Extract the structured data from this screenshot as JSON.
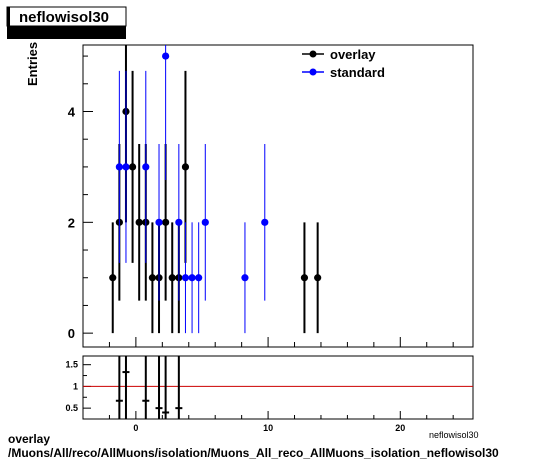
{
  "title": "neflowisol30",
  "ylabel": "Entries",
  "xlabel_partial": "neflowisol30",
  "footer": {
    "line1": "overlay",
    "line2": "/Muons/All/reco/AllMuons/isolation/Muons_All_reco_AllMuons_isolation_neflowisol30"
  },
  "colors": {
    "overlay": "#000000",
    "standard": "#0000ff",
    "ratio_line": "#cc0000"
  },
  "chart_data": [
    {
      "type": "scatter",
      "role": "main",
      "title": "neflowisol30",
      "ylabel": "Entries",
      "xlim": [
        -4,
        25.5
      ],
      "ylim": [
        -0.25,
        5.2
      ],
      "y_ticks": [
        0,
        2,
        4
      ],
      "legend": "top-right",
      "series": [
        {
          "name": "overlay",
          "color": "#000000",
          "points": [
            {
              "x": -1.75,
              "y": 1
            },
            {
              "x": -1.25,
              "y": 2
            },
            {
              "x": -0.75,
              "y": 4
            },
            {
              "x": -0.25,
              "y": 3
            },
            {
              "x": 0.25,
              "y": 2
            },
            {
              "x": 0.75,
              "y": 2
            },
            {
              "x": 1.25,
              "y": 1
            },
            {
              "x": 1.75,
              "y": 1
            },
            {
              "x": 2.25,
              "y": 2
            },
            {
              "x": 2.75,
              "y": 1
            },
            {
              "x": 3.25,
              "y": 1
            },
            {
              "x": 3.75,
              "y": 3
            },
            {
              "x": 12.75,
              "y": 1
            },
            {
              "x": 13.75,
              "y": 1
            }
          ]
        },
        {
          "name": "standard",
          "color": "#0000ff",
          "points": [
            {
              "x": -1.25,
              "y": 3
            },
            {
              "x": -0.75,
              "y": 3
            },
            {
              "x": 0.75,
              "y": 3
            },
            {
              "x": 1.75,
              "y": 2
            },
            {
              "x": 2.25,
              "y": 5
            },
            {
              "x": 3.25,
              "y": 2
            },
            {
              "x": 3.75,
              "y": 1
            },
            {
              "x": 4.25,
              "y": 1
            },
            {
              "x": 4.75,
              "y": 1
            },
            {
              "x": 5.25,
              "y": 2
            },
            {
              "x": 8.25,
              "y": 1
            },
            {
              "x": 9.75,
              "y": 2
            }
          ]
        }
      ]
    },
    {
      "type": "scatter",
      "role": "ratio",
      "xlim": [
        -4,
        25.5
      ],
      "ylim": [
        0.25,
        1.7
      ],
      "x_ticks": [
        0,
        10,
        20
      ],
      "y_ticks": [
        0.5,
        1,
        1.5
      ],
      "reference_line": 1,
      "points": [
        {
          "x": -1.25,
          "y": 0.67
        },
        {
          "x": -0.75,
          "y": 1.33
        },
        {
          "x": 0.75,
          "y": 0.67
        },
        {
          "x": 1.75,
          "y": 0.5
        },
        {
          "x": 2.25,
          "y": 0.4
        },
        {
          "x": 3.25,
          "y": 0.5
        }
      ]
    }
  ]
}
